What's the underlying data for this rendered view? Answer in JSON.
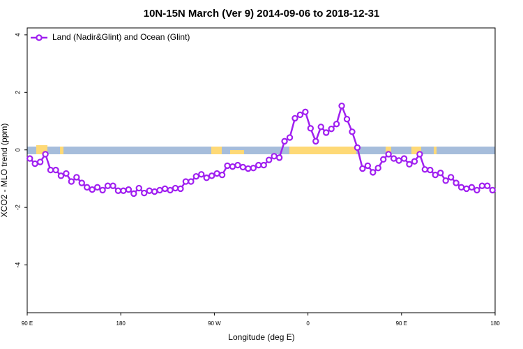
{
  "chart_data": {
    "type": "line",
    "title": "10N-15N March (Ver 9)   2014-09-06 to 2018-12-31",
    "xlabel": "Longitude (deg E)",
    "ylabel": "XCO2 - MLO trend (ppm)",
    "xlim": [
      90,
      540
    ],
    "ylim": [
      -5.66,
      4.24
    ],
    "xticks": [
      {
        "value": 90,
        "label": "90 E"
      },
      180,
      {
        "value": 270,
        "label": "90 W"
      },
      {
        "value": 360,
        "label": "0"
      },
      {
        "value": 450,
        "label": "90 E"
      },
      {
        "value": 540,
        "label": "180"
      }
    ],
    "yticks": [
      4,
      2,
      0,
      -2,
      -4
    ],
    "legend": "top-left",
    "x": [
      92.5,
      97.5,
      102.5,
      107.5,
      112.5,
      117.5,
      122.5,
      127.5,
      132.5,
      137.5,
      142.5,
      147.5,
      152.5,
      157.5,
      162.5,
      167.5,
      172.5,
      177.5,
      182.5,
      187.5,
      192.5,
      197.5,
      202.5,
      207.5,
      212.5,
      217.5,
      222.5,
      227.5,
      232.5,
      237.5,
      242.5,
      247.5,
      252.5,
      257.5,
      262.5,
      267.5,
      272.5,
      277.5,
      282.5,
      287.5,
      292.5,
      297.5,
      302.5,
      307.5,
      312.5,
      317.5,
      322.5,
      327.5,
      332.5,
      337.5,
      342.5,
      347.5,
      352.5,
      357.5,
      362.5,
      367.5,
      372.5,
      377.5,
      382.5,
      387.5,
      392.5,
      397.5,
      402.5,
      407.5,
      412.5,
      417.5,
      422.5,
      427.5,
      432.5,
      437.5,
      442.5,
      447.5,
      452.5,
      457.5,
      462.5,
      467.5,
      472.5,
      477.5,
      482.5,
      487.5,
      492.5,
      497.5,
      502.5,
      507.5,
      512.5,
      517.5,
      522.5,
      527.5,
      532.5,
      537.5
    ],
    "series": [
      {
        "name": "Land (Nadir&Glint) and Ocean (Glint)",
        "color": "#a020f0",
        "values": [
          -0.3,
          -0.48,
          -0.42,
          -0.15,
          -0.7,
          -0.7,
          -0.9,
          -0.82,
          -1.1,
          -0.95,
          -1.15,
          -1.3,
          -1.38,
          -1.3,
          -1.4,
          -1.25,
          -1.25,
          -1.42,
          -1.42,
          -1.38,
          -1.52,
          -1.33,
          -1.5,
          -1.42,
          -1.45,
          -1.4,
          -1.35,
          -1.4,
          -1.33,
          -1.35,
          -1.1,
          -1.1,
          -0.92,
          -0.85,
          -0.97,
          -0.9,
          -0.82,
          -0.87,
          -0.55,
          -0.58,
          -0.53,
          -0.6,
          -0.65,
          -0.63,
          -0.53,
          -0.53,
          -0.35,
          -0.22,
          -0.27,
          0.3,
          0.43,
          1.1,
          1.22,
          1.32,
          0.75,
          0.3,
          0.8,
          0.6,
          0.73,
          0.9,
          1.53,
          1.07,
          0.63,
          0.08,
          -0.65,
          -0.55,
          -0.78,
          -0.63,
          -0.33,
          -0.15,
          -0.3,
          -0.37,
          -0.3,
          -0.5,
          -0.4,
          -0.15,
          -0.68,
          -0.7,
          -0.87,
          -0.8,
          -1.07,
          -0.95,
          -1.15,
          -1.3,
          -1.35,
          -1.3,
          -1.4,
          -1.25,
          -1.25,
          -1.4
        ]
      }
    ]
  }
}
